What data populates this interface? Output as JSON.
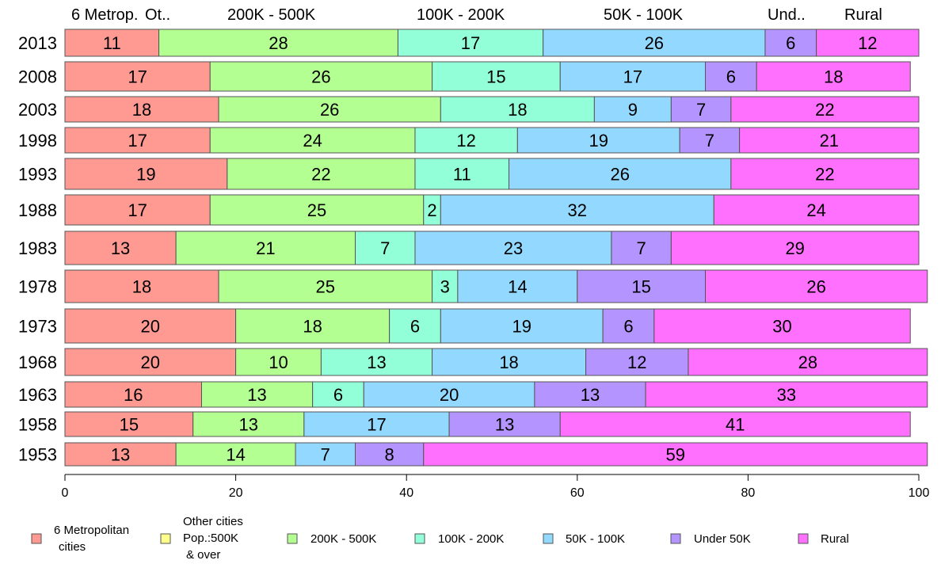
{
  "chart_data": {
    "type": "bar",
    "orientation": "horizontal",
    "stacked": true,
    "categories": [
      "2013",
      "2008",
      "2003",
      "1998",
      "1993",
      "1988",
      "1983",
      "1978",
      "1973",
      "1968",
      "1963",
      "1958",
      "1953"
    ],
    "series": [
      {
        "name": "6 Metropolitan cities",
        "color": "#ff9a93",
        "values": [
          11,
          17,
          18,
          17,
          19,
          17,
          13,
          18,
          20,
          20,
          16,
          15,
          13
        ]
      },
      {
        "name": "Other cities Pop.:500K & over",
        "color": "#ffff8c",
        "values": [
          0,
          0,
          0,
          0,
          0,
          0,
          0,
          0,
          0,
          0,
          0,
          0,
          0
        ]
      },
      {
        "name": "200K - 500K",
        "color": "#b4ff92",
        "values": [
          28,
          26,
          26,
          24,
          22,
          25,
          21,
          25,
          18,
          10,
          13,
          13,
          14
        ]
      },
      {
        "name": "100K - 200K",
        "color": "#92ffd8",
        "values": [
          17,
          15,
          18,
          12,
          11,
          2,
          7,
          3,
          6,
          13,
          6,
          0,
          0
        ]
      },
      {
        "name": "50K - 100K",
        "color": "#92d8ff",
        "values": [
          26,
          17,
          9,
          19,
          26,
          32,
          23,
          14,
          19,
          18,
          20,
          17,
          7
        ]
      },
      {
        "name": "Under 50K",
        "color": "#b494ff",
        "values": [
          6,
          6,
          7,
          7,
          0,
          0,
          7,
          15,
          6,
          12,
          13,
          13,
          8
        ]
      },
      {
        "name": "Rural",
        "color": "#ff70ff",
        "values": [
          12,
          18,
          22,
          21,
          22,
          24,
          29,
          26,
          30,
          28,
          33,
          41,
          59
        ]
      }
    ],
    "xlim": [
      0,
      100
    ],
    "x_ticks": [
      "0",
      "20",
      "40",
      "60",
      "80",
      "100"
    ],
    "top_labels": [
      "6 Metrop.",
      "Ot..",
      "200K - 500K",
      "100K - 200K",
      "50K - 100K",
      "Und..",
      "Rural"
    ],
    "legend": {
      "placement": "bottom",
      "entries": [
        {
          "lines": [
            "6 Metropolitan",
            "cities"
          ]
        },
        {
          "lines": [
            "Other cities",
            "Pop.:500K",
            "& over"
          ]
        },
        {
          "lines": [
            "200K - 500K"
          ]
        },
        {
          "lines": [
            "100K - 200K"
          ]
        },
        {
          "lines": [
            "50K - 100K"
          ]
        },
        {
          "lines": [
            "Under 50K"
          ]
        },
        {
          "lines": [
            "Rural"
          ]
        }
      ]
    }
  }
}
